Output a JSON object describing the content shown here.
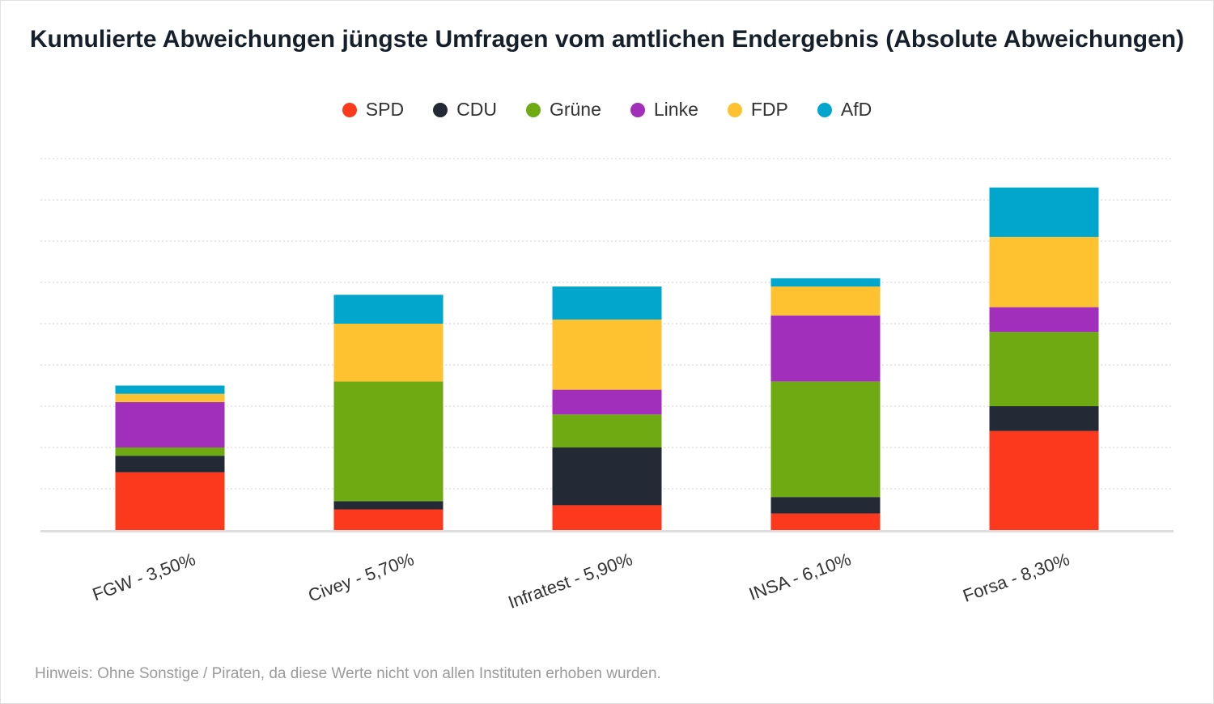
{
  "chart_data": {
    "type": "bar",
    "stacked": true,
    "title": "Kumulierte Abweichungen jüngste Umfragen vom amtlichen Endergebnis (Absolute Abweichungen)",
    "categories": [
      "FGW - 3,50%",
      "Civey - 5,70%",
      "Infratest - 5,90%",
      "INSA - 6,10%",
      "Forsa - 8,30%"
    ],
    "series": [
      {
        "name": "SPD",
        "color": "#fd391d",
        "values": [
          1.4,
          0.5,
          0.6,
          0.4,
          2.4
        ]
      },
      {
        "name": "CDU",
        "color": "#232a35",
        "values": [
          0.4,
          0.2,
          1.4,
          0.4,
          0.6
        ]
      },
      {
        "name": "Grüne",
        "color": "#6faa13",
        "values": [
          0.2,
          2.9,
          0.8,
          2.8,
          1.8
        ]
      },
      {
        "name": "Linke",
        "color": "#a12fbc",
        "values": [
          1.1,
          0.0,
          0.6,
          1.6,
          0.6
        ]
      },
      {
        "name": "FDP",
        "color": "#fec230",
        "values": [
          0.2,
          1.4,
          1.7,
          0.7,
          1.7
        ]
      },
      {
        "name": "AfD",
        "color": "#00a6cb",
        "values": [
          0.2,
          0.7,
          0.8,
          0.2,
          1.2
        ]
      }
    ],
    "ylim": [
      0,
      9
    ],
    "y_grid_step": 1,
    "grid": true,
    "ytick_labels_visible": false,
    "legend_position": "top-center",
    "xlabel": "",
    "ylabel": ""
  },
  "footnote": "Hinweis: Ohne Sonstige / Piraten, da diese Werte nicht von allen Instituten erhoben wurden."
}
